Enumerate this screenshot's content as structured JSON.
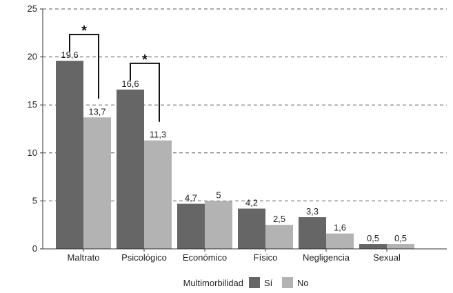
{
  "chart_data": {
    "type": "bar",
    "title": "",
    "xlabel": "",
    "ylabel": "",
    "categories": [
      "Maltrato",
      "Psicológico",
      "Económico",
      "Físico",
      "Negligencia",
      "Sexual"
    ],
    "series": [
      {
        "name": "Sí",
        "values": [
          19.6,
          16.6,
          4.7,
          4.2,
          3.3,
          0.5
        ],
        "labels": [
          "19,6",
          "16,6",
          "4,7",
          "4,2",
          "3,3",
          "0,5"
        ],
        "color": "#666666"
      },
      {
        "name": "No",
        "values": [
          13.7,
          11.3,
          5,
          2.5,
          1.6,
          0.5
        ],
        "labels": [
          "13,7",
          "11,3",
          "5",
          "2,5",
          "1,6",
          "0,5"
        ],
        "color": "#b3b3b3"
      }
    ],
    "ylim": [
      0,
      25
    ],
    "yticks": [
      0,
      5,
      10,
      15,
      20,
      25
    ],
    "grid": "horizontal-dashed",
    "legend": {
      "title": "Multimorbilidad",
      "position": "bottom"
    },
    "annotations": [
      {
        "text": "*",
        "category": "Maltrato"
      },
      {
        "text": "*",
        "category": "Psicológico"
      }
    ]
  }
}
